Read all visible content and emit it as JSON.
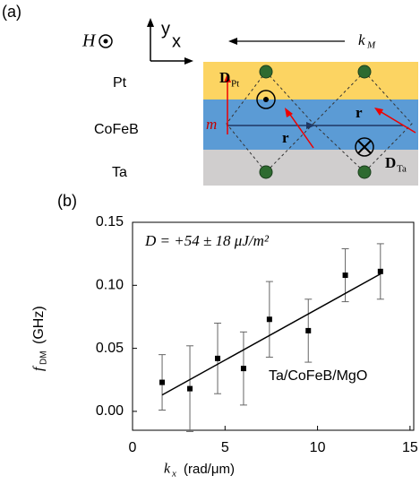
{
  "panel_a": {
    "label": "(a)",
    "field": "H",
    "axis_y": "y",
    "axis_x": "x",
    "wavevector": {
      "symbol": "k",
      "subscript": "M"
    },
    "layers": [
      "Pt",
      "CoFeB",
      "Ta"
    ],
    "d_top": {
      "symbol": "D",
      "subscript": "Pt"
    },
    "d_bottom": {
      "symbol": "D",
      "subscript": "Ta"
    },
    "magnetization": "m",
    "vectors": [
      "r",
      "r"
    ]
  },
  "chart_data": {
    "type": "scatter",
    "title": "(b)",
    "annotations": [
      "D = +54 ± 18 μJ/m²",
      "Ta/CoFeB/MgO"
    ],
    "x_label": {
      "symbol": "k",
      "subscript": "x",
      "unit": "(rad/μm)"
    },
    "y_label": {
      "symbol": "f",
      "subscript": "DM",
      "unit": "(GHz)"
    },
    "x": [
      1.6,
      3.1,
      4.6,
      6.0,
      7.4,
      9.5,
      11.5,
      13.4
    ],
    "values": [
      0.023,
      0.018,
      0.042,
      0.034,
      0.073,
      0.064,
      0.108,
      0.111
    ],
    "errors": [
      0.022,
      0.034,
      0.028,
      0.029,
      0.03,
      0.025,
      0.021,
      0.022
    ],
    "fit": {
      "x": [
        1.6,
        13.4
      ],
      "values": [
        0.013,
        0.109
      ]
    },
    "color": "#000000",
    "xlim": [
      0,
      15.2
    ],
    "xticks": [
      0,
      5,
      10,
      15
    ],
    "ylim": [
      -0.015,
      0.15
    ],
    "yticks": [
      {
        "value": 0,
        "label": "0.00"
      },
      {
        "value": 0.05,
        "label": "0.05"
      },
      {
        "value": 0.1,
        "label": "0.10"
      },
      {
        "value": 0.15,
        "label": "0.15"
      }
    ]
  }
}
